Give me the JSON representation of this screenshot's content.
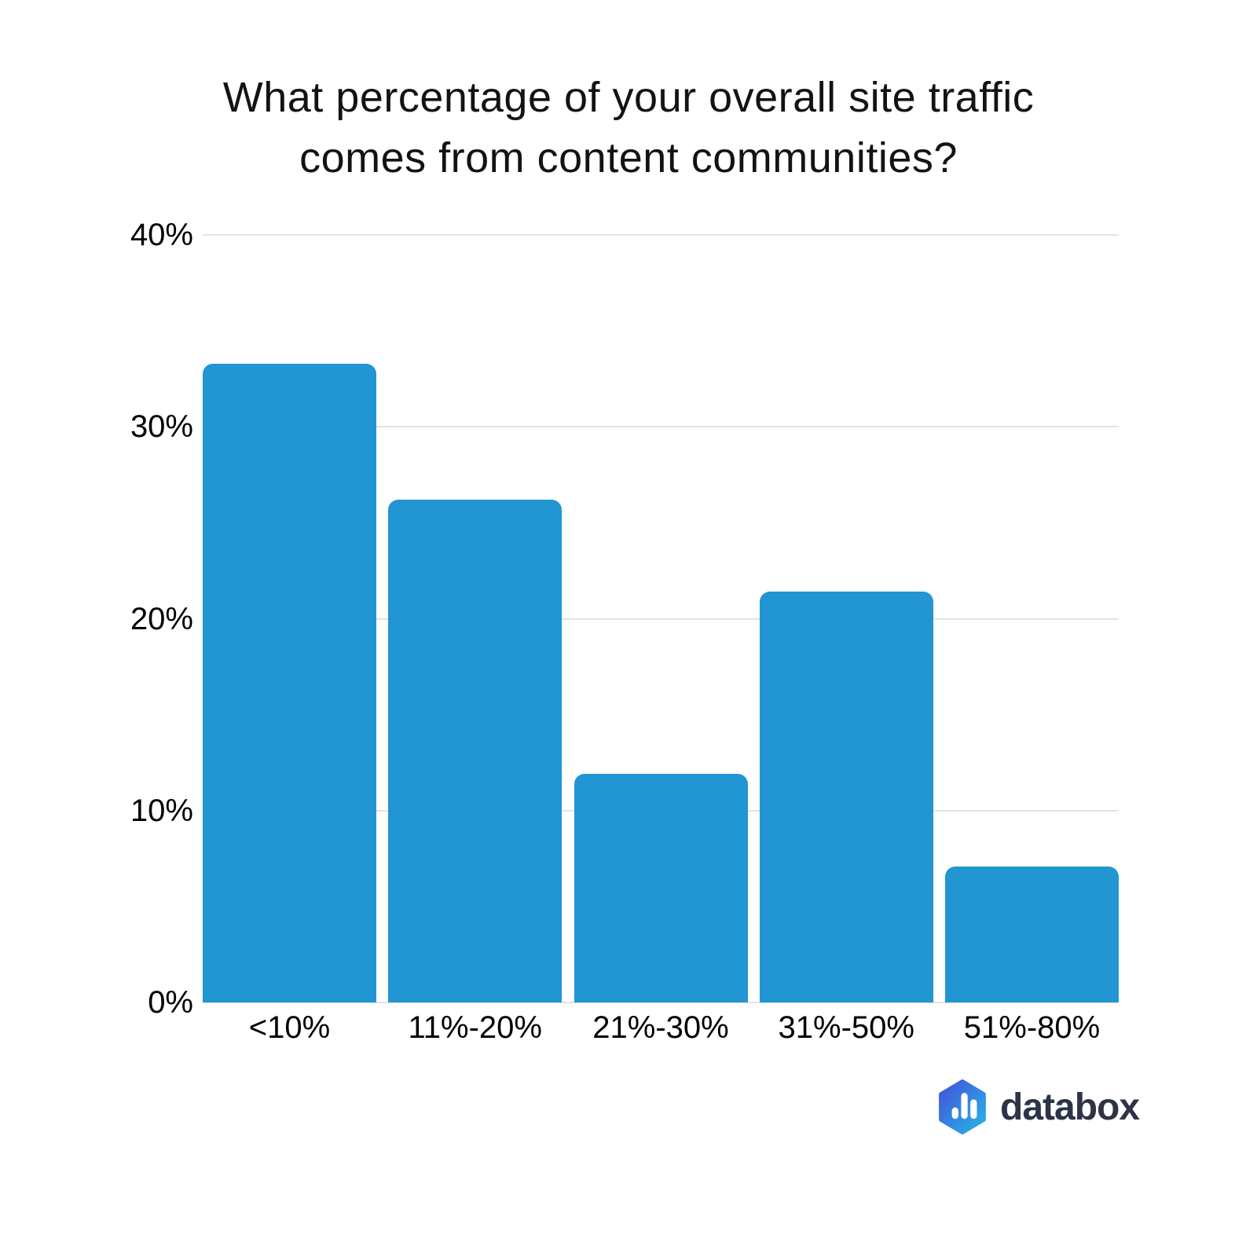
{
  "chart_data": {
    "type": "bar",
    "title": "What percentage of your overall site traffic comes from content communities?",
    "title_line1": "What percentage of your overall site traffic",
    "title_line2": "comes from content communities?",
    "categories": [
      "<10%",
      "11%-20%",
      "21%-30%",
      "31%-50%",
      "51%-80%"
    ],
    "values": [
      33.3,
      26.2,
      11.9,
      21.4,
      7.1
    ],
    "unit": "%",
    "xlabel": "",
    "ylabel": "",
    "ylim": [
      0,
      40
    ],
    "yticks": [
      "0%",
      "10%",
      "20%",
      "30%",
      "40%"
    ],
    "grid": "horizontal-only",
    "legend": "none",
    "bar_color": "#2196d3"
  },
  "branding": {
    "logo_text": "databox",
    "logo_icon": "databox-hexagon-bars-icon",
    "logo_text_color": "#2e3447",
    "logo_gradient_start": "#4352d9",
    "logo_gradient_end": "#27b5e8"
  },
  "colors": {
    "background": "#ffffff",
    "bar": "#2196d3",
    "gridline": "#e3e3e3",
    "axis_text": "#000000",
    "title_text": "#131313"
  }
}
